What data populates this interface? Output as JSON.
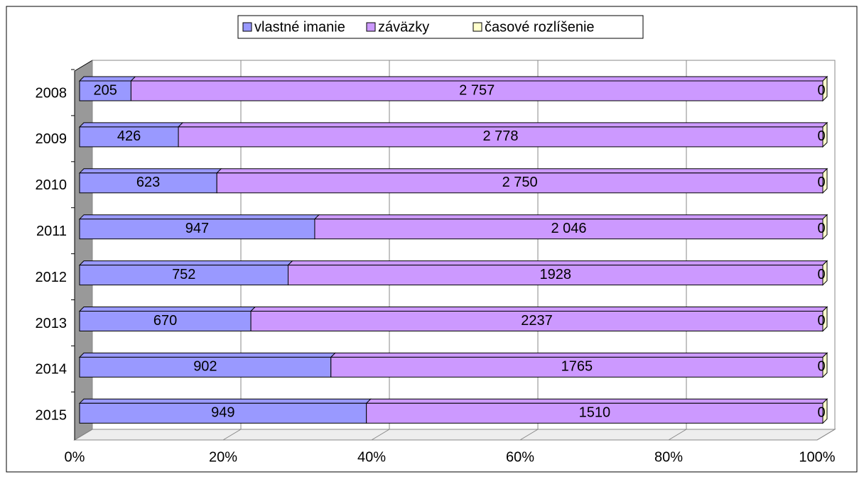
{
  "chart_data": {
    "type": "bar",
    "orientation": "horizontal",
    "stacking": "percent",
    "categories": [
      "2008",
      "2009",
      "2010",
      "2011",
      "2012",
      "2013",
      "2014",
      "2015"
    ],
    "series": [
      {
        "name": "vlastné imanie",
        "color": "#9999ff",
        "values": [
          205,
          426,
          623,
          947,
          752,
          670,
          902,
          949
        ],
        "value_labels": [
          "205",
          "426",
          "623",
          "947",
          "752",
          "670",
          "902",
          "949"
        ]
      },
      {
        "name": "záväzky",
        "color": "#cc99ff",
        "values": [
          2757,
          2778,
          2750,
          2046,
          1928,
          2237,
          1765,
          1510
        ],
        "value_labels": [
          "2 757",
          "2 778",
          "2 750",
          "2 046",
          "1928",
          "2237",
          "1765",
          "1510"
        ]
      },
      {
        "name": "časové rozlíšenie",
        "color": "#ffffcc",
        "values": [
          0,
          0,
          0,
          0,
          0,
          0,
          0,
          0
        ],
        "value_labels": [
          "0",
          "0",
          "0",
          "0",
          "0",
          "0",
          "0",
          "0"
        ]
      }
    ],
    "xlim": [
      0,
      100
    ],
    "xticks": [
      {
        "value": 0,
        "label": "0%"
      },
      {
        "value": 20,
        "label": "20%"
      },
      {
        "value": 40,
        "label": "40%"
      },
      {
        "value": 60,
        "label": "60%"
      },
      {
        "value": 80,
        "label": "80%"
      },
      {
        "value": 100,
        "label": "100%"
      }
    ],
    "grid": true,
    "legend": "top"
  }
}
